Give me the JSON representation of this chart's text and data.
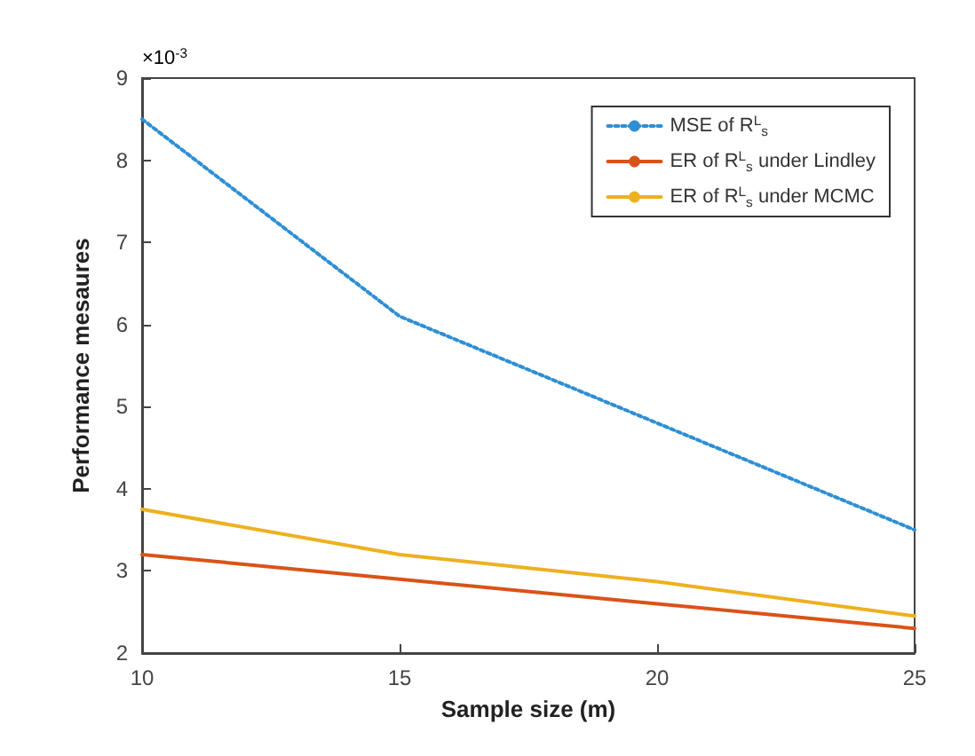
{
  "chart_data": {
    "type": "line",
    "xlabel": "Sample size (m)",
    "ylabel": "Performance mesaures",
    "x": [
      10,
      15,
      20,
      25
    ],
    "series": [
      {
        "name": "MSE of R$^{L}$$_{s}$",
        "color": "#2e8fd4",
        "line_style": "dotted",
        "values": [
          8.5,
          6.1,
          4.8,
          3.5
        ]
      },
      {
        "name": "ER of R$^{L}$$_{s}$ under Lindley",
        "color": "#d95319",
        "line_style": "solid",
        "values": [
          3.2,
          2.9,
          2.6,
          2.3
        ]
      },
      {
        "name": "ER of R$^{L}$$_{s}$ under MCMC",
        "color": "#edb120",
        "line_style": "solid",
        "values": [
          3.75,
          3.2,
          2.87,
          2.45
        ]
      }
    ],
    "xlim": [
      10,
      25
    ],
    "xticks": [
      10,
      15,
      20,
      25
    ],
    "ylim": [
      2,
      9
    ],
    "yticks": [
      2,
      3,
      4,
      5,
      6,
      7,
      8,
      9
    ],
    "annotations": [
      "×10$^{-3}$"
    ],
    "grid": false,
    "legend": "top right",
    "marker": "none"
  }
}
